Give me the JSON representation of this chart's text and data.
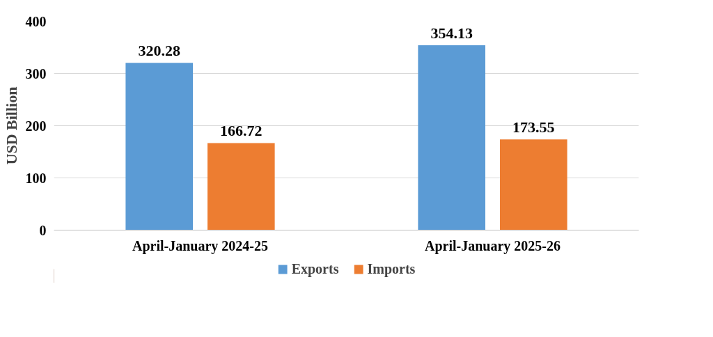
{
  "chart_data": {
    "type": "bar",
    "ylabel": "USD Billion",
    "categories": [
      "April-January 2024-25",
      "April-January 2025-26"
    ],
    "series": [
      {
        "name": "Exports",
        "color": "#5b9bd5",
        "values": [
          320.28,
          354.13
        ]
      },
      {
        "name": "Imports",
        "color": "#ed7d31",
        "values": [
          166.72,
          173.55
        ]
      }
    ],
    "ylim": [
      0,
      400
    ],
    "yticks": [
      0,
      100,
      200,
      300,
      400
    ],
    "grid": "y",
    "legend": "bottom",
    "data_labels": true
  }
}
